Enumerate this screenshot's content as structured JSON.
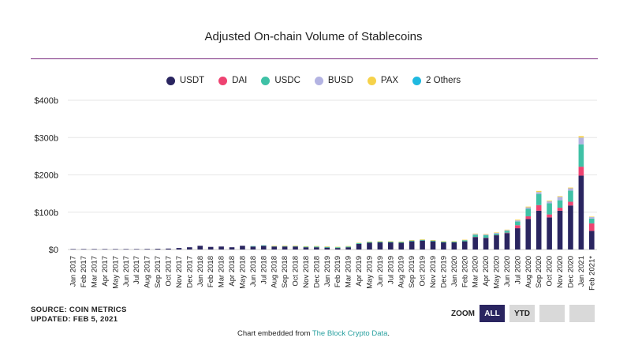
{
  "chart_data": {
    "type": "bar",
    "stacked": true,
    "title": "Adjusted On-chain Volume of Stablecoins",
    "xlabel": "",
    "ylabel": "",
    "ylim": [
      0,
      400
    ],
    "y_ticks": [
      0,
      100,
      200,
      300,
      400
    ],
    "y_tick_labels": [
      "$0",
      "$100b",
      "$200b",
      "$300b",
      "$400b"
    ],
    "legend_position": "top-center",
    "categories": [
      "Jan 2017",
      "Feb 2017",
      "Mar 2017",
      "Apr 2017",
      "May 2017",
      "Jun 2017",
      "Jul 2017",
      "Aug 2017",
      "Sep 2017",
      "Oct 2017",
      "Nov 2017",
      "Dec 2017",
      "Jan 2018",
      "Feb 2018",
      "Mar 2018",
      "Apr 2018",
      "May 2018",
      "Jun 2018",
      "Jul 2018",
      "Aug 2018",
      "Sep 2018",
      "Oct 2018",
      "Nov 2018",
      "Dec 2018",
      "Jan 2019",
      "Feb 2019",
      "Mar 2019",
      "Apr 2019",
      "May 2019",
      "Jun 2019",
      "Jul 2019",
      "Aug 2019",
      "Sep 2019",
      "Oct 2019",
      "Nov 2019",
      "Dec 2019",
      "Jan 2020",
      "Feb 2020",
      "Mar 2020",
      "Apr 2020",
      "May 2020",
      "Jun 2020",
      "Jul 2020",
      "Aug 2020",
      "Sep 2020",
      "Oct 2020",
      "Nov 2020",
      "Dec 2020",
      "Jan 2021",
      "Feb 2021*"
    ],
    "series": [
      {
        "name": "USDT",
        "color": "#2a2560",
        "values": [
          0.3,
          0.3,
          0.4,
          0.5,
          0.8,
          1,
          1,
          1.5,
          2,
          2.5,
          4,
          6,
          10,
          7,
          8,
          6,
          10,
          8,
          10,
          8,
          8,
          8,
          6,
          6,
          5,
          4,
          6,
          15,
          18,
          19,
          19,
          18,
          22,
          24,
          22,
          19,
          19,
          22,
          33,
          31,
          38,
          44,
          57,
          82,
          104,
          86,
          104,
          118,
          198,
          50
        ]
      },
      {
        "name": "DAI",
        "color": "#ee4371",
        "values": [
          0,
          0,
          0,
          0,
          0,
          0,
          0,
          0,
          0,
          0,
          0,
          0,
          0,
          0,
          0,
          0,
          0,
          0,
          0,
          0,
          0,
          0,
          0,
          0,
          0,
          0,
          0,
          0,
          0,
          0,
          0,
          0,
          0,
          0,
          0,
          0,
          0,
          0,
          0.5,
          0.5,
          0.5,
          1,
          8,
          7,
          15,
          8,
          8,
          10,
          24,
          20
        ]
      },
      {
        "name": "USDC",
        "color": "#3fc1a6",
        "values": [
          0,
          0,
          0,
          0,
          0,
          0,
          0,
          0,
          0,
          0,
          0,
          0,
          0,
          0,
          0,
          0,
          0,
          0.3,
          0.5,
          0.5,
          1,
          1,
          1.5,
          2,
          2,
          2,
          2,
          2,
          2,
          2,
          2,
          2,
          2,
          2,
          2,
          2,
          2,
          3,
          6,
          7,
          4,
          5,
          10,
          20,
          30,
          30,
          20,
          30,
          60,
          13
        ]
      },
      {
        "name": "BUSD",
        "color": "#b3b3e2",
        "values": [
          0,
          0,
          0,
          0,
          0,
          0,
          0,
          0,
          0,
          0,
          0,
          0,
          0,
          0,
          0,
          0,
          0,
          0,
          0,
          0,
          0,
          0,
          0,
          0,
          0,
          0,
          0,
          0,
          0,
          0,
          0,
          0,
          0,
          0,
          0,
          0,
          0,
          0,
          2,
          2,
          2,
          2,
          3,
          4,
          5,
          5,
          9,
          6,
          18,
          4
        ]
      },
      {
        "name": "PAX",
        "color": "#f6d24a",
        "values": [
          0,
          0,
          0,
          0,
          0,
          0,
          0,
          0,
          0,
          0,
          0,
          0,
          0,
          0,
          0,
          0,
          0,
          0,
          0,
          0.3,
          0.5,
          0.5,
          0.5,
          0.5,
          0.5,
          0.5,
          0.5,
          0.5,
          0.5,
          0.5,
          0.5,
          0.5,
          0.5,
          0.5,
          0.5,
          0.5,
          0.5,
          0.5,
          1,
          1,
          1,
          1,
          2,
          2,
          3,
          2,
          2,
          2,
          4,
          1
        ]
      },
      {
        "name": "2 Others",
        "color": "#1fb9e0",
        "values": [
          0,
          0,
          0,
          0,
          0,
          0,
          0,
          0,
          0,
          0,
          0,
          0,
          0,
          0,
          0,
          0,
          0,
          0,
          0,
          0,
          0,
          0,
          0,
          0,
          0,
          0,
          0,
          0,
          0,
          0,
          0,
          0,
          0,
          0,
          0,
          0,
          0,
          0,
          0,
          0,
          0,
          0,
          0,
          0,
          0,
          0,
          0,
          0,
          0,
          0
        ]
      }
    ]
  },
  "source": {
    "line1": "SOURCE: COIN METRICS",
    "line2": "UPDATED: FEB 5, 2021"
  },
  "zoom": {
    "label": "ZOOM",
    "buttons": [
      {
        "label": "ALL",
        "active": true
      },
      {
        "label": "YTD",
        "active": false
      },
      {
        "label": "",
        "active": false
      },
      {
        "label": "",
        "active": false
      }
    ]
  },
  "footer": {
    "prefix": "Chart embedded from ",
    "link_text": "The Block Crypto Data",
    "suffix": "."
  }
}
